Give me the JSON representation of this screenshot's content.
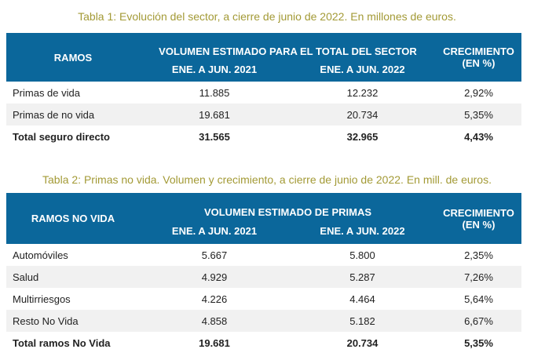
{
  "colors": {
    "header": "#0b679b",
    "caption": "#a39a36",
    "stripe": "#f1f1f1"
  },
  "table1": {
    "caption": "Tabla 1: Evolución del sector, a cierre de junio de 2022. En millones de euros.",
    "headers": {
      "ramos": "RAMOS",
      "group": "VOLUMEN ESTIMADO PARA EL TOTAL DEL SECTOR",
      "y2021": "ENE. A JUN. 2021",
      "y2022": "ENE. A JUN. 2022",
      "growth": "CRECIMIENTO",
      "growth_unit": "(EN %)"
    },
    "rows": [
      {
        "label": "Primas de vida",
        "v2021": "11.885",
        "v2022": "12.232",
        "growth": "2,92%"
      },
      {
        "label": "Primas de no vida",
        "v2021": "19.681",
        "v2022": "20.734",
        "growth": "5,35%"
      },
      {
        "label": "Total seguro directo",
        "v2021": "31.565",
        "v2022": "32.965",
        "growth": "4,43%"
      }
    ]
  },
  "table2": {
    "caption": "Tabla 2: Primas no vida. Volumen y crecimiento, a cierre de junio de 2022. En mill. de euros.",
    "headers": {
      "ramos": "RAMOS NO VIDA",
      "group": "VOLUMEN ESTIMADO DE PRIMAS",
      "y2021": "ENE. A JUN. 2021",
      "y2022": "ENE. A JUN. 2022",
      "growth": "CRECIMIENTO",
      "growth_unit": "(EN %)"
    },
    "rows": [
      {
        "label": "Automóviles",
        "v2021": "5.667",
        "v2022": "5.800",
        "growth": "2,35%"
      },
      {
        "label": "Salud",
        "v2021": "4.929",
        "v2022": "5.287",
        "growth": "7,26%"
      },
      {
        "label": "Multirriesgos",
        "v2021": "4.226",
        "v2022": "4.464",
        "growth": "5,64%"
      },
      {
        "label": "Resto No Vida",
        "v2021": "4.858",
        "v2022": "5.182",
        "growth": "6,67%"
      },
      {
        "label": "Total ramos No Vida",
        "v2021": "19.681",
        "v2022": "20.734",
        "growth": "5,35%"
      }
    ]
  }
}
